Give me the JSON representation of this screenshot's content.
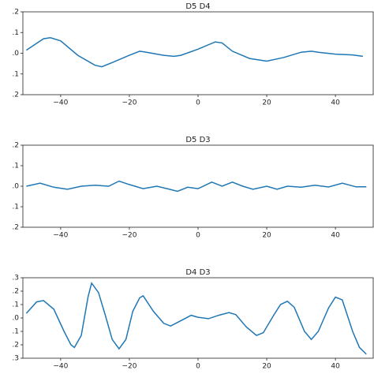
{
  "chart_data": [
    {
      "type": "line",
      "title": "D5  D4",
      "x": [
        -50,
        -45,
        -43,
        -40,
        -35,
        -30,
        -28,
        -25,
        -20,
        -17,
        -15,
        -10,
        -7,
        -5,
        0,
        5,
        7,
        10,
        15,
        20,
        25,
        30,
        33,
        35,
        40,
        45,
        48
      ],
      "values": [
        0.015,
        0.07,
        0.075,
        0.06,
        -0.01,
        -0.058,
        -0.065,
        -0.045,
        -0.01,
        0.01,
        0.005,
        -0.01,
        -0.015,
        -0.01,
        0.02,
        0.055,
        0.05,
        0.01,
        -0.025,
        -0.038,
        -0.02,
        0.005,
        0.01,
        0.005,
        -0.004,
        -0.008,
        -0.015
      ],
      "color": "#1f77b4",
      "xlim": [
        -51,
        51
      ],
      "ylim": [
        -0.2,
        0.2
      ],
      "xticks": [
        {
          "value": -40,
          "label": "−40"
        },
        {
          "value": -20,
          "label": "−20"
        },
        0,
        20,
        40
      ],
      "yticks": [
        {
          "value": 0.2,
          "label": ".2"
        },
        {
          "value": 0.1,
          "label": ".1"
        },
        {
          "value": 0,
          "label": ".0"
        },
        {
          "value": -0.1,
          "label": ".1"
        },
        {
          "value": -0.2,
          "label": ".2"
        }
      ]
    },
    {
      "type": "line",
      "title": "D5  D3",
      "x": [
        -50,
        -46,
        -42,
        -38,
        -34,
        -30,
        -26,
        -23,
        -20,
        -16,
        -12,
        -9,
        -6,
        -3,
        0,
        4,
        7,
        10,
        13,
        16,
        20,
        23,
        26,
        30,
        34,
        38,
        42,
        46,
        49
      ],
      "values": [
        0,
        0.015,
        -0.005,
        -0.015,
        0,
        0.005,
        0,
        0.025,
        0.008,
        -0.012,
        0,
        -0.012,
        -0.025,
        -0.005,
        -0.012,
        0.02,
        0,
        0.02,
        0,
        -0.015,
        0,
        -0.015,
        0,
        -0.005,
        0.005,
        -0.004,
        0.015,
        -0.003,
        -0.003
      ],
      "color": "#1f77b4",
      "xlim": [
        -51,
        51
      ],
      "ylim": [
        -0.2,
        0.2
      ],
      "xticks": [
        {
          "value": -40,
          "label": "−40"
        },
        {
          "value": -20,
          "label": "−20"
        },
        0,
        20,
        40
      ],
      "yticks": [
        {
          "value": 0.2,
          "label": ".2"
        },
        {
          "value": 0.1,
          "label": ".1"
        },
        {
          "value": 0,
          "label": ".0"
        },
        {
          "value": -0.1,
          "label": ".1"
        },
        {
          "value": -0.2,
          "label": ".2"
        }
      ]
    },
    {
      "type": "line",
      "title": "D4  D3",
      "x": [
        -50,
        -47,
        -45,
        -42,
        -39,
        -37,
        -36,
        -34,
        -32,
        -31,
        -29,
        -27,
        -25,
        -23,
        -21,
        -19,
        -17,
        -16,
        -13,
        -10,
        -8,
        -5,
        -2,
        0,
        3,
        6,
        9,
        11,
        14,
        17,
        19,
        22,
        24,
        26,
        28,
        31,
        33,
        35,
        38,
        40,
        42,
        45,
        47,
        49
      ],
      "values": [
        0.035,
        0.12,
        0.13,
        0.065,
        -0.1,
        -0.2,
        -0.22,
        -0.13,
        0.16,
        0.26,
        0.19,
        0.02,
        -0.16,
        -0.23,
        -0.16,
        0.05,
        0.15,
        0.165,
        0.05,
        -0.04,
        -0.06,
        -0.02,
        0.02,
        0.005,
        -0.005,
        0.02,
        0.04,
        0.025,
        -0.065,
        -0.13,
        -0.11,
        0.02,
        0.1,
        0.125,
        0.08,
        -0.1,
        -0.16,
        -0.1,
        0.075,
        0.155,
        0.135,
        -0.1,
        -0.22,
        -0.27
      ],
      "color": "#1f77b4",
      "xlim": [
        -51,
        51
      ],
      "ylim": [
        -0.3,
        0.3
      ],
      "xticks": [
        {
          "value": -40,
          "label": "−40"
        },
        {
          "value": -20,
          "label": "−20"
        },
        0,
        20,
        40
      ],
      "yticks": [
        {
          "value": 0.3,
          "label": ".3"
        },
        {
          "value": 0.2,
          "label": ".2"
        },
        {
          "value": 0.1,
          "label": ".1"
        },
        {
          "value": 0,
          "label": ".0"
        },
        {
          "value": -0.1,
          "label": ".1"
        },
        {
          "value": -0.2,
          "label": ".2"
        },
        {
          "value": -0.3,
          "label": ".3"
        }
      ]
    }
  ]
}
